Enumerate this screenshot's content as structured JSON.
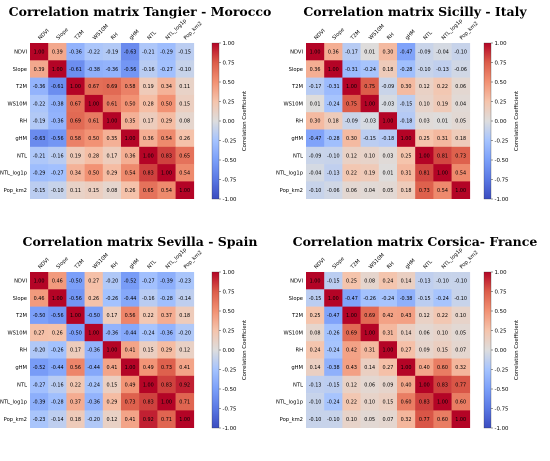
{
  "colors": {
    "negative": "#3b4cc0",
    "neutral": "#dddddd",
    "positive": "#b40426"
  },
  "chart_data": [
    {
      "type": "heatmap",
      "title": "Correlation matrix Tangier - Morocco",
      "labels": [
        "NDVI",
        "Slope",
        "T2M",
        "WS10M",
        "RH",
        "gHM",
        "NTL",
        "NTL_log1p",
        "Pop_km2"
      ],
      "colorbar_label": "Correlation Coefficient",
      "colorbar_ticks": [
        "1.00",
        "0.75",
        "0.50",
        "0.25",
        "0.00",
        "-0.25",
        "-0.50",
        "-0.75",
        "-1.00"
      ],
      "vmin": -1,
      "vmax": 1,
      "matrix": [
        [
          1.0,
          0.39,
          -0.36,
          -0.22,
          -0.19,
          -0.63,
          -0.21,
          -0.29,
          -0.15
        ],
        [
          0.39,
          1.0,
          -0.61,
          -0.38,
          -0.36,
          -0.56,
          -0.16,
          -0.27,
          -0.1
        ],
        [
          -0.36,
          -0.61,
          1.0,
          0.67,
          0.69,
          0.58,
          0.19,
          0.34,
          0.11
        ],
        [
          -0.22,
          -0.38,
          0.67,
          1.0,
          0.61,
          0.5,
          0.28,
          0.5,
          0.15
        ],
        [
          -0.19,
          -0.36,
          0.69,
          0.61,
          1.0,
          0.35,
          0.17,
          0.29,
          0.08
        ],
        [
          -0.63,
          -0.56,
          0.58,
          0.5,
          0.35,
          1.0,
          0.36,
          0.54,
          0.26
        ],
        [
          -0.21,
          -0.16,
          0.19,
          0.28,
          0.17,
          0.36,
          1.0,
          0.83,
          0.65
        ],
        [
          -0.29,
          -0.27,
          0.34,
          0.5,
          0.29,
          0.54,
          0.83,
          1.0,
          0.54
        ],
        [
          -0.15,
          -0.1,
          0.11,
          0.15,
          0.08,
          0.26,
          0.65,
          0.54,
          1.0
        ]
      ]
    },
    {
      "type": "heatmap",
      "title": "Correlation matrix Sicilly - Italy",
      "labels": [
        "NDVI",
        "Slope",
        "T2M",
        "WS10M",
        "RH",
        "gHM",
        "NTL",
        "NTL_log1p",
        "Pop_km2"
      ],
      "colorbar_label": "Correlation Coefficient",
      "colorbar_ticks": [
        "1.00",
        "0.75",
        "0.50",
        "0.25",
        "0.00",
        "-0.25",
        "-0.50",
        "-0.75",
        "-1.00"
      ],
      "vmin": -1,
      "vmax": 1,
      "matrix": [
        [
          1.0,
          0.36,
          -0.17,
          0.01,
          0.3,
          -0.47,
          -0.09,
          -0.04,
          -0.1
        ],
        [
          0.36,
          1.0,
          -0.31,
          -0.24,
          0.18,
          -0.28,
          -0.1,
          -0.13,
          -0.06
        ],
        [
          -0.17,
          -0.31,
          1.0,
          0.75,
          -0.09,
          0.3,
          0.12,
          0.22,
          0.06
        ],
        [
          0.01,
          -0.24,
          0.75,
          1.0,
          -0.03,
          -0.15,
          0.1,
          0.19,
          0.04
        ],
        [
          0.3,
          0.18,
          -0.09,
          -0.03,
          1.0,
          -0.18,
          0.03,
          0.01,
          0.05
        ],
        [
          -0.47,
          -0.28,
          0.3,
          -0.15,
          -0.18,
          1.0,
          0.25,
          0.31,
          0.18
        ],
        [
          -0.09,
          -0.1,
          0.12,
          0.1,
          0.03,
          0.25,
          1.0,
          0.81,
          0.73
        ],
        [
          -0.04,
          -0.13,
          0.22,
          0.19,
          0.01,
          0.31,
          0.81,
          1.0,
          0.54
        ],
        [
          -0.1,
          -0.06,
          0.06,
          0.04,
          0.05,
          0.18,
          0.73,
          0.54,
          1.0
        ]
      ]
    },
    {
      "type": "heatmap",
      "title": "Correlation matrix Sevilla - Spain",
      "labels": [
        "NDVI",
        "Slope",
        "T2M",
        "WS10M",
        "RH",
        "gHM",
        "NTL",
        "NTL_log1p",
        "Pop_km2"
      ],
      "colorbar_label": "Correlation Coefficient",
      "colorbar_ticks": [
        "1.00",
        "0.75",
        "0.50",
        "0.25",
        "0.00",
        "-0.25",
        "-0.50",
        "-0.75",
        "-1.00"
      ],
      "vmin": -1,
      "vmax": 1,
      "matrix": [
        [
          1.0,
          0.46,
          -0.5,
          0.27,
          -0.2,
          -0.52,
          -0.27,
          -0.39,
          -0.23
        ],
        [
          0.46,
          1.0,
          -0.56,
          0.26,
          -0.26,
          -0.44,
          -0.16,
          -0.28,
          -0.14
        ],
        [
          -0.5,
          -0.56,
          1.0,
          -0.5,
          0.17,
          0.56,
          0.22,
          0.37,
          0.18
        ],
        [
          0.27,
          0.26,
          -0.5,
          1.0,
          -0.36,
          -0.44,
          -0.24,
          -0.36,
          -0.2
        ],
        [
          -0.2,
          -0.26,
          0.17,
          -0.36,
          1.0,
          0.41,
          0.15,
          0.29,
          0.12
        ],
        [
          -0.52,
          -0.44,
          0.56,
          -0.44,
          0.41,
          1.0,
          0.49,
          0.73,
          0.41
        ],
        [
          -0.27,
          -0.16,
          0.22,
          -0.24,
          0.15,
          0.49,
          1.0,
          0.83,
          0.92
        ],
        [
          -0.39,
          -0.28,
          0.37,
          -0.36,
          0.29,
          0.73,
          0.83,
          1.0,
          0.71
        ],
        [
          -0.23,
          -0.14,
          0.18,
          -0.2,
          0.12,
          0.41,
          0.92,
          0.71,
          1.0
        ]
      ]
    },
    {
      "type": "heatmap",
      "title": "Correlation matrix Corsica- France",
      "labels": [
        "NDVI",
        "Slope",
        "T2M",
        "WS10M",
        "RH",
        "gHM",
        "NTL",
        "NTL_log1p",
        "Pop_km2"
      ],
      "colorbar_label": "Correlation Coefficient",
      "colorbar_ticks": [
        "1.00",
        "0.75",
        "0.50",
        "0.25",
        "0.00",
        "-0.25",
        "-0.50",
        "-0.75",
        "-1.00"
      ],
      "vmin": -1,
      "vmax": 1,
      "matrix": [
        [
          1.0,
          -0.15,
          0.25,
          0.08,
          0.24,
          0.14,
          -0.13,
          -0.1,
          -0.1
        ],
        [
          -0.15,
          1.0,
          -0.47,
          -0.26,
          -0.24,
          -0.38,
          -0.15,
          -0.24,
          -0.1
        ],
        [
          0.25,
          -0.47,
          1.0,
          0.69,
          0.42,
          0.43,
          0.12,
          0.22,
          0.1
        ],
        [
          0.08,
          -0.26,
          0.69,
          1.0,
          0.31,
          0.14,
          0.06,
          0.1,
          0.05
        ],
        [
          0.24,
          -0.24,
          0.42,
          0.31,
          1.0,
          0.27,
          0.09,
          0.15,
          0.07
        ],
        [
          0.14,
          -0.38,
          0.43,
          0.14,
          0.27,
          1.0,
          0.4,
          0.6,
          0.32
        ],
        [
          -0.13,
          -0.15,
          0.12,
          0.06,
          0.09,
          0.4,
          1.0,
          0.83,
          0.77
        ],
        [
          -0.1,
          -0.24,
          0.22,
          0.1,
          0.15,
          0.6,
          0.83,
          1.0,
          0.6
        ],
        [
          -0.1,
          -0.1,
          0.1,
          0.05,
          0.07,
          0.32,
          0.77,
          0.6,
          1.0
        ]
      ]
    }
  ]
}
